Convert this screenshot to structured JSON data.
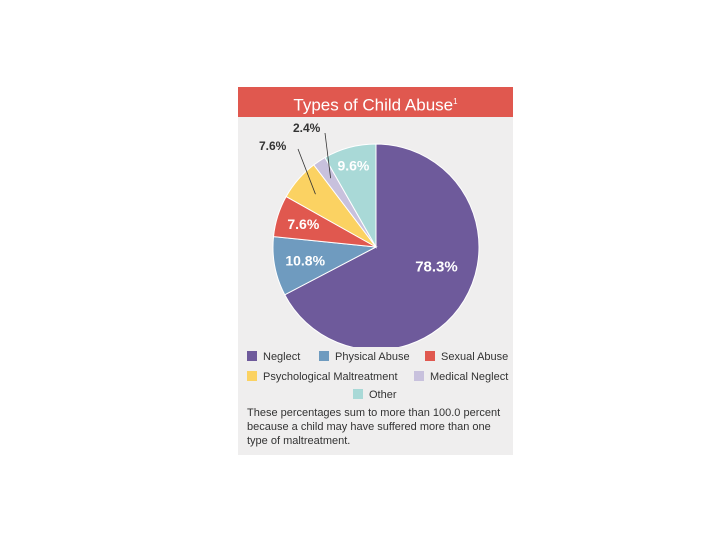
{
  "title": "Types of Child Abuse",
  "title_sup": "1",
  "colors": {
    "neglect": "#6e5a9b",
    "physical": "#6f9bbf",
    "sexual": "#e0584f",
    "psychological": "#fbd262",
    "medical": "#c8c1dd",
    "other": "#a9d9d7",
    "title_bg": "#e0584f"
  },
  "chart_data": {
    "type": "pie",
    "title": "Types of Child Abuse",
    "slices": [
      {
        "name": "Neglect",
        "label": "78.3%",
        "value": 78.3,
        "color": "#6e5a9b"
      },
      {
        "name": "Physical Abuse",
        "label": "10.8%",
        "value": 10.8,
        "color": "#6f9bbf"
      },
      {
        "name": "Sexual Abuse",
        "label": "7.6%",
        "value": 7.6,
        "color": "#e0584f"
      },
      {
        "name": "Psychological Maltreatment",
        "label": "7.6%",
        "value": 7.6,
        "color": "#fbd262"
      },
      {
        "name": "Medical Neglect",
        "label": "2.4%",
        "value": 2.4,
        "color": "#c8c1dd"
      },
      {
        "name": "Other",
        "label": "9.6%",
        "value": 9.6,
        "color": "#a9d9d7"
      }
    ]
  },
  "footnote": "These percentages sum to more than 100.0 percent because a child may have suffered more than one type of maltreatment."
}
